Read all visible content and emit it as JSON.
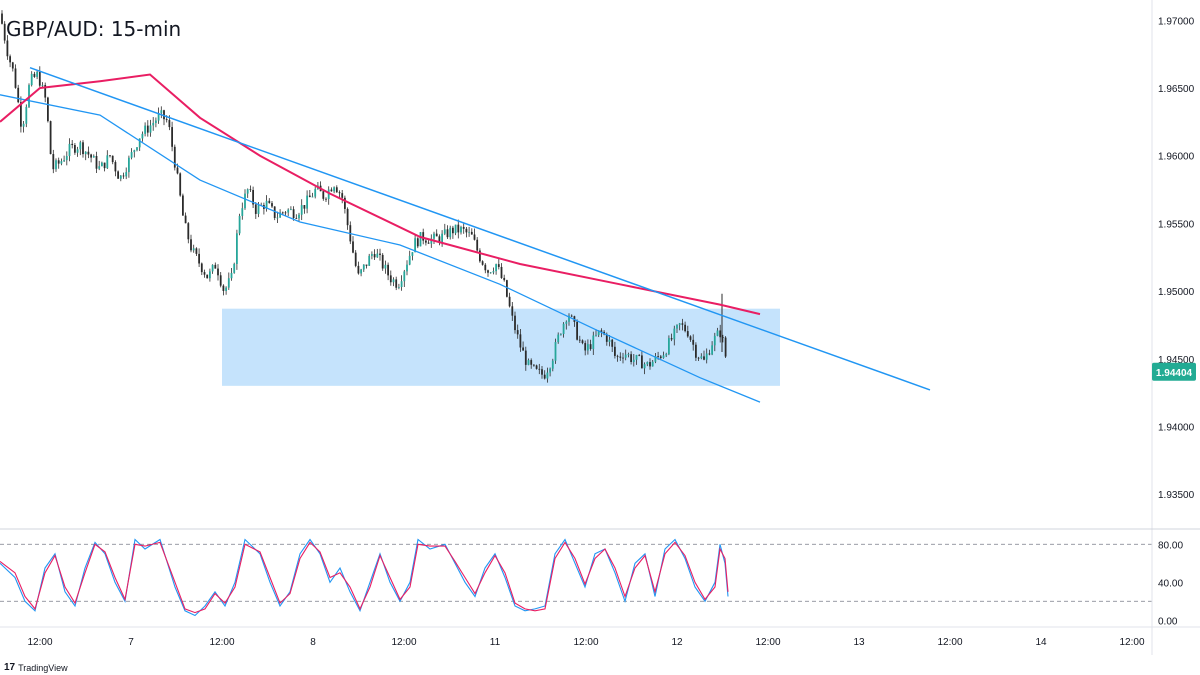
{
  "window": {
    "title": "GBP/AUD: 15-min",
    "brand": "TradingView",
    "brand_icon": "tradingview-logo-icon"
  },
  "colors": {
    "bull": "#26a69a",
    "bear": "#ef5350",
    "candle_body_dark": "#2b2b2b",
    "ma_fast": "#2196f3",
    "ma_slow": "#e91e63",
    "trendline": "#2196f3",
    "zone_fill": "#bbdefb",
    "price_tag": "#22ab94",
    "stoch_k": "#2196f3",
    "stoch_d": "#e91e63"
  },
  "chart_data": [
    {
      "type": "candlestick",
      "title": "GBP/AUD: 15-min",
      "x_ticks": [
        "12:00",
        "7",
        "12:00",
        "8",
        "12:00",
        "11",
        "12:00",
        "12",
        "12:00",
        "13",
        "12:00",
        "14",
        "12:00"
      ],
      "y_ticks": [
        "1.97000",
        "1.96500",
        "1.96000",
        "1.95500",
        "1.95000",
        "1.94500",
        "1.94000",
        "1.93500"
      ],
      "ylim": [
        1.9325,
        1.9715
      ],
      "last_price": "1.94404",
      "grid": false,
      "price_path": [
        [
          0,
          1.9705
        ],
        [
          8,
          1.9675
        ],
        [
          14,
          1.966
        ],
        [
          22,
          1.962
        ],
        [
          30,
          1.9655
        ],
        [
          38,
          1.966
        ],
        [
          46,
          1.964
        ],
        [
          52,
          1.959
        ],
        [
          60,
          1.9595
        ],
        [
          70,
          1.9605
        ],
        [
          80,
          1.9608
        ],
        [
          90,
          1.96
        ],
        [
          100,
          1.959
        ],
        [
          110,
          1.96
        ],
        [
          120,
          1.9583
        ],
        [
          130,
          1.9598
        ],
        [
          140,
          1.9615
        ],
        [
          150,
          1.9622
        ],
        [
          160,
          1.963
        ],
        [
          168,
          1.9625
        ],
        [
          176,
          1.959
        ],
        [
          184,
          1.955
        ],
        [
          192,
          1.953
        ],
        [
          200,
          1.952
        ],
        [
          208,
          1.951
        ],
        [
          216,
          1.952
        ],
        [
          224,
          1.95
        ],
        [
          232,
          1.951
        ],
        [
          240,
          1.956
        ],
        [
          248,
          1.9575
        ],
        [
          256,
          1.956
        ],
        [
          266,
          1.9565
        ],
        [
          276,
          1.9555
        ],
        [
          286,
          1.956
        ],
        [
          296,
          1.9558
        ],
        [
          306,
          1.9565
        ],
        [
          316,
          1.9575
        ],
        [
          324,
          1.957
        ],
        [
          334,
          1.958
        ],
        [
          342,
          1.957
        ],
        [
          350,
          1.954
        ],
        [
          358,
          1.951
        ],
        [
          366,
          1.952
        ],
        [
          374,
          1.953
        ],
        [
          382,
          1.952
        ],
        [
          390,
          1.951
        ],
        [
          398,
          1.9505
        ],
        [
          406,
          1.952
        ],
        [
          414,
          1.9535
        ],
        [
          422,
          1.954
        ],
        [
          432,
          1.9538
        ],
        [
          442,
          1.954
        ],
        [
          452,
          1.9545
        ],
        [
          462,
          1.9545
        ],
        [
          472,
          1.954
        ],
        [
          480,
          1.9525
        ],
        [
          488,
          1.9515
        ],
        [
          496,
          1.952
        ],
        [
          504,
          1.9505
        ],
        [
          512,
          1.948
        ],
        [
          520,
          1.946
        ],
        [
          528,
          1.9445
        ],
        [
          536,
          1.944
        ],
        [
          544,
          1.9438
        ],
        [
          552,
          1.945
        ],
        [
          560,
          1.947
        ],
        [
          568,
          1.9485
        ],
        [
          576,
          1.947
        ],
        [
          584,
          1.9455
        ],
        [
          592,
          1.9462
        ],
        [
          600,
          1.947
        ],
        [
          608,
          1.9465
        ],
        [
          616,
          1.945
        ],
        [
          624,
          1.9455
        ],
        [
          632,
          1.945
        ],
        [
          640,
          1.9448
        ],
        [
          648,
          1.9445
        ],
        [
          656,
          1.945
        ],
        [
          664,
          1.9455
        ],
        [
          672,
          1.9465
        ],
        [
          680,
          1.9475
        ],
        [
          688,
          1.947
        ],
        [
          696,
          1.9455
        ],
        [
          704,
          1.9448
        ],
        [
          712,
          1.9462
        ],
        [
          720,
          1.947
        ],
        [
          724,
          1.946
        ],
        [
          728,
          1.944
        ]
      ],
      "series": [
        {
          "values": [
            [
              0,
              1.9645
            ],
            [
              100,
              1.963
            ],
            [
              200,
              1.9582
            ],
            [
              300,
              1.9551
            ],
            [
              400,
              1.9534
            ],
            [
              500,
              1.9505
            ],
            [
              600,
              1.947
            ],
            [
              700,
              1.9436
            ],
            [
              760,
              1.9418
            ]
          ]
        },
        {
          "values": [
            [
              0,
              1.9625
            ],
            [
              40,
              1.965
            ],
            [
              100,
              1.9655
            ],
            [
              150,
              1.966
            ],
            [
              200,
              1.9628
            ],
            [
              260,
              1.96
            ],
            [
              330,
              1.9572
            ],
            [
              420,
              1.954
            ],
            [
              520,
              1.952
            ],
            [
              620,
              1.9505
            ],
            [
              720,
              1.949
            ],
            [
              760,
              1.9483
            ]
          ]
        }
      ],
      "trendline": {
        "from": [
          30,
          1.9665
        ],
        "to": [
          930,
          1.9427
        ]
      },
      "demand_zone": {
        "x_from": 222,
        "x_to": 780,
        "top": 1.9487,
        "bottom": 1.943
      }
    },
    {
      "type": "line",
      "name": "stochastic",
      "y_ticks": [
        "80.00",
        "40.00",
        "0.00"
      ],
      "ylim": [
        -5,
        95
      ],
      "levels": [
        80,
        20
      ],
      "series": [
        {
          "values": [
            [
              0,
              60
            ],
            [
              15,
              45
            ],
            [
              25,
              20
            ],
            [
              35,
              10
            ],
            [
              45,
              55
            ],
            [
              55,
              70
            ],
            [
              65,
              30
            ],
            [
              75,
              15
            ],
            [
              85,
              55
            ],
            [
              95,
              82
            ],
            [
              105,
              70
            ],
            [
              115,
              40
            ],
            [
              125,
              20
            ],
            [
              135,
              85
            ],
            [
              145,
              75
            ],
            [
              160,
              85
            ],
            [
              175,
              35
            ],
            [
              185,
              10
            ],
            [
              195,
              5
            ],
            [
              205,
              15
            ],
            [
              215,
              30
            ],
            [
              225,
              15
            ],
            [
              235,
              40
            ],
            [
              245,
              85
            ],
            [
              260,
              70
            ],
            [
              270,
              40
            ],
            [
              280,
              15
            ],
            [
              290,
              30
            ],
            [
              300,
              70
            ],
            [
              310,
              85
            ],
            [
              320,
              70
            ],
            [
              330,
              40
            ],
            [
              340,
              55
            ],
            [
              350,
              30
            ],
            [
              360,
              10
            ],
            [
              370,
              40
            ],
            [
              380,
              70
            ],
            [
              390,
              40
            ],
            [
              400,
              20
            ],
            [
              410,
              40
            ],
            [
              418,
              85
            ],
            [
              430,
              75
            ],
            [
              445,
              80
            ],
            [
              455,
              60
            ],
            [
              465,
              40
            ],
            [
              475,
              25
            ],
            [
              485,
              55
            ],
            [
              495,
              70
            ],
            [
              505,
              45
            ],
            [
              515,
              15
            ],
            [
              525,
              10
            ],
            [
              535,
              12
            ],
            [
              545,
              15
            ],
            [
              555,
              70
            ],
            [
              565,
              85
            ],
            [
              575,
              60
            ],
            [
              585,
              35
            ],
            [
              595,
              70
            ],
            [
              605,
              75
            ],
            [
              615,
              50
            ],
            [
              625,
              20
            ],
            [
              635,
              60
            ],
            [
              645,
              70
            ],
            [
              655,
              25
            ],
            [
              665,
              75
            ],
            [
              675,
              85
            ],
            [
              685,
              65
            ],
            [
              695,
              35
            ],
            [
              705,
              20
            ],
            [
              715,
              40
            ],
            [
              720,
              80
            ],
            [
              725,
              60
            ],
            [
              728,
              25
            ]
          ]
        },
        {
          "values": [
            [
              0,
              62
            ],
            [
              15,
              50
            ],
            [
              25,
              25
            ],
            [
              35,
              12
            ],
            [
              45,
              50
            ],
            [
              55,
              68
            ],
            [
              65,
              35
            ],
            [
              75,
              18
            ],
            [
              85,
              50
            ],
            [
              95,
              80
            ],
            [
              105,
              72
            ],
            [
              115,
              45
            ],
            [
              125,
              22
            ],
            [
              135,
              80
            ],
            [
              145,
              78
            ],
            [
              160,
              82
            ],
            [
              175,
              40
            ],
            [
              185,
              12
            ],
            [
              195,
              8
            ],
            [
              205,
              12
            ],
            [
              215,
              28
            ],
            [
              225,
              18
            ],
            [
              235,
              35
            ],
            [
              245,
              80
            ],
            [
              260,
              72
            ],
            [
              270,
              45
            ],
            [
              280,
              18
            ],
            [
              290,
              28
            ],
            [
              300,
              65
            ],
            [
              310,
              82
            ],
            [
              320,
              72
            ],
            [
              330,
              45
            ],
            [
              340,
              50
            ],
            [
              350,
              35
            ],
            [
              360,
              12
            ],
            [
              370,
              35
            ],
            [
              380,
              68
            ],
            [
              390,
              45
            ],
            [
              400,
              22
            ],
            [
              410,
              35
            ],
            [
              418,
              80
            ],
            [
              430,
              78
            ],
            [
              445,
              78
            ],
            [
              455,
              62
            ],
            [
              465,
              45
            ],
            [
              475,
              28
            ],
            [
              485,
              50
            ],
            [
              495,
              68
            ],
            [
              505,
              50
            ],
            [
              515,
              18
            ],
            [
              525,
              12
            ],
            [
              535,
              10
            ],
            [
              545,
              12
            ],
            [
              555,
              65
            ],
            [
              565,
              82
            ],
            [
              575,
              65
            ],
            [
              585,
              38
            ],
            [
              595,
              65
            ],
            [
              605,
              75
            ],
            [
              615,
              55
            ],
            [
              625,
              25
            ],
            [
              635,
              55
            ],
            [
              645,
              68
            ],
            [
              655,
              30
            ],
            [
              665,
              70
            ],
            [
              675,
              82
            ],
            [
              685,
              68
            ],
            [
              695,
              40
            ],
            [
              705,
              22
            ],
            [
              715,
              35
            ],
            [
              720,
              75
            ],
            [
              725,
              65
            ],
            [
              728,
              30
            ]
          ]
        }
      ]
    }
  ]
}
